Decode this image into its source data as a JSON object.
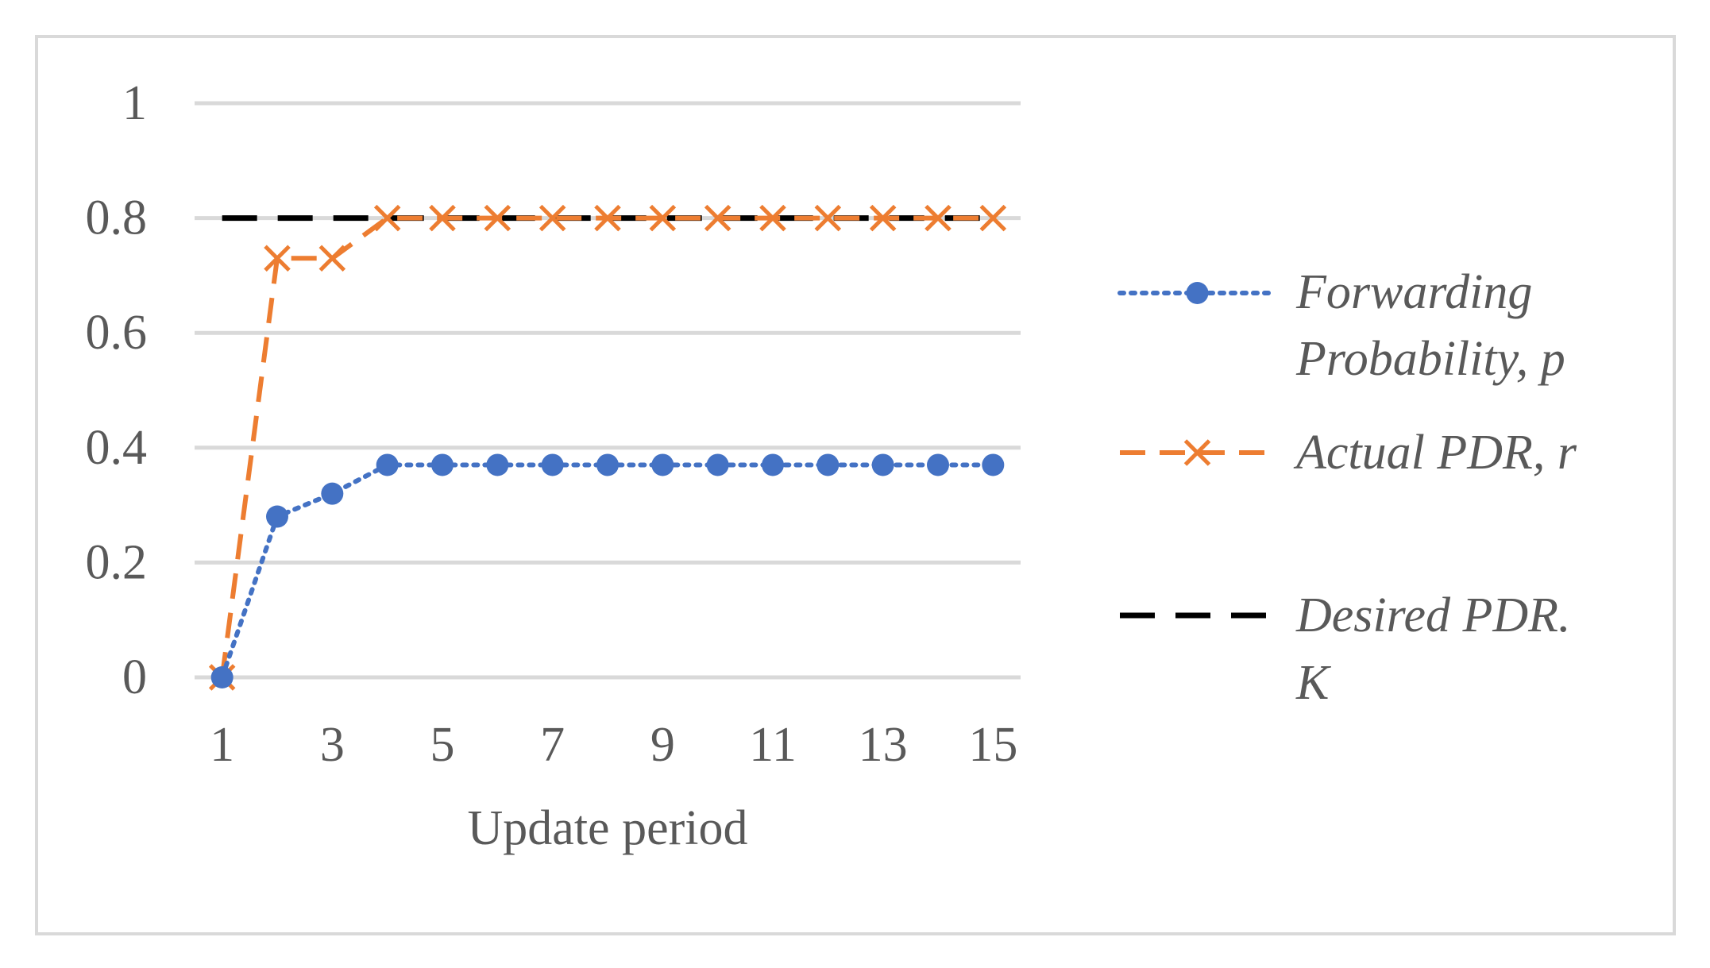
{
  "chart_data": {
    "type": "line",
    "title": "",
    "xlabel": "Update period",
    "ylabel": "",
    "x": [
      1,
      2,
      3,
      4,
      5,
      6,
      7,
      8,
      9,
      10,
      11,
      12,
      13,
      14,
      15
    ],
    "xticks": [
      "1",
      "3",
      "5",
      "7",
      "9",
      "11",
      "13",
      "15"
    ],
    "xtick_values": [
      1,
      3,
      5,
      7,
      9,
      11,
      13,
      15
    ],
    "yticks": [
      "0",
      "0.2",
      "0.4",
      "0.6",
      "0.8",
      "1"
    ],
    "ytick_values": [
      0,
      0.2,
      0.4,
      0.6,
      0.8,
      1
    ],
    "ylim": [
      0,
      1
    ],
    "xlim": [
      0.5,
      15.5
    ],
    "grid": true,
    "legend_position": "right",
    "series": [
      {
        "name": "Forwarding Probability, p",
        "legend_lines": [
          "Forwarding",
          "Probability, p"
        ],
        "color": "#4472c4",
        "line_style": "dotted",
        "marker": "circle",
        "values": [
          0,
          0.28,
          0.32,
          0.37,
          0.37,
          0.37,
          0.37,
          0.37,
          0.37,
          0.37,
          0.37,
          0.37,
          0.37,
          0.37,
          0.37
        ]
      },
      {
        "name": "Actual PDR, r",
        "legend_lines": [
          "Actual PDR, r"
        ],
        "color": "#ed7d31",
        "line_style": "dashed",
        "marker": "x",
        "values": [
          0,
          0.73,
          0.73,
          0.8,
          0.8,
          0.8,
          0.8,
          0.8,
          0.8,
          0.8,
          0.8,
          0.8,
          0.8,
          0.8,
          0.8
        ]
      },
      {
        "name": "Desired PDR. K",
        "legend_lines": [
          "Desired PDR.",
          "K"
        ],
        "color": "#000000",
        "line_style": "long-dash",
        "marker": "none",
        "values": [
          0.8,
          0.8,
          0.8,
          0.8,
          0.8,
          0.8,
          0.8,
          0.8,
          0.8,
          0.8,
          0.8,
          0.8,
          0.8,
          0.8,
          0.8
        ]
      }
    ],
    "colors": {
      "grid": "#d9d9d9",
      "text": "#595959",
      "border": "#d9d9d9"
    }
  }
}
